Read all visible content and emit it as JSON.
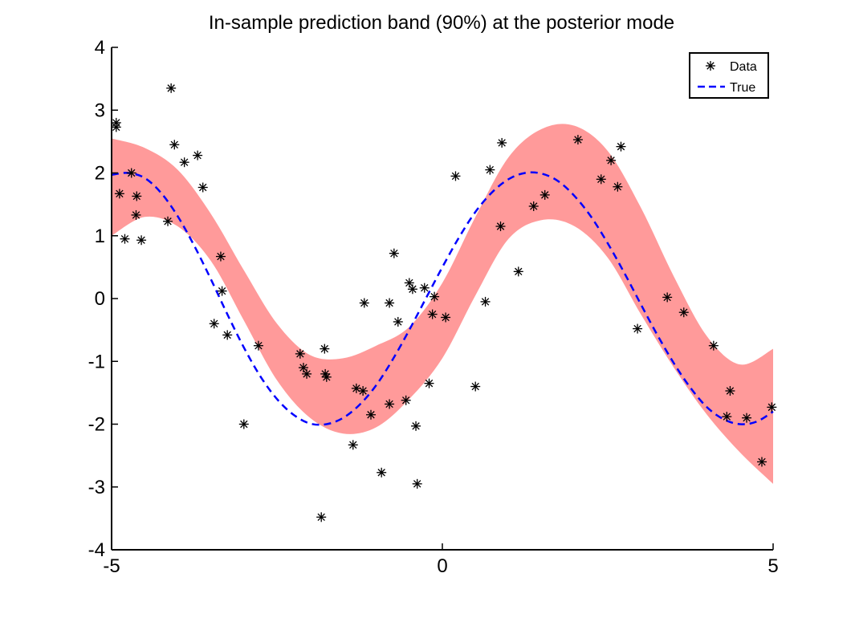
{
  "colors": {
    "band": "#ff9a9a",
    "true_line": "#0000ff",
    "data_marker": "#000000",
    "axis": "#000000"
  },
  "chart_data": {
    "type": "line",
    "title": "In-sample prediction band (90%) at the posterior mode",
    "xlabel": "",
    "ylabel": "",
    "xlim": [
      -5,
      5
    ],
    "ylim": [
      -4,
      4
    ],
    "x_ticks": [
      -5,
      0,
      5
    ],
    "x_tick_labels": [
      "-5",
      "0",
      "5"
    ],
    "y_ticks": [
      -4,
      -3,
      -2,
      -1,
      0,
      1,
      2,
      3,
      4
    ],
    "y_tick_labels": [
      "-4",
      "-3",
      "-2",
      "-1",
      "0",
      "1",
      "2",
      "3",
      "4"
    ],
    "grid": false,
    "legend": {
      "placement": "top-right",
      "entries": [
        {
          "label": "Data",
          "marker": "asterisk"
        },
        {
          "label": "True",
          "line": "dashed"
        }
      ]
    },
    "band": {
      "x": [
        -5,
        -4.5,
        -4,
        -3.5,
        -3,
        -2.5,
        -2,
        -1.5,
        -1,
        -0.5,
        0,
        0.5,
        1,
        1.5,
        2,
        2.5,
        3,
        3.5,
        4,
        4.5,
        5
      ],
      "upper": [
        2.55,
        2.4,
        2.05,
        1.35,
        0.45,
        -0.4,
        -0.9,
        -0.95,
        -0.75,
        -0.45,
        0.25,
        1.3,
        2.25,
        2.7,
        2.75,
        2.35,
        1.45,
        0.35,
        -0.6,
        -1.05,
        -0.8
      ],
      "lower": [
        1.0,
        1.3,
        1.15,
        0.6,
        -0.35,
        -1.3,
        -1.9,
        -2.15,
        -2.05,
        -1.6,
        -0.95,
        0.05,
        0.95,
        1.25,
        1.15,
        0.65,
        -0.25,
        -1.1,
        -1.85,
        -2.45,
        -2.95
      ]
    },
    "series": [
      {
        "name": "True",
        "style": "dashed",
        "x": [
          -5,
          -4.75,
          -4.5,
          -4.25,
          -4,
          -3.75,
          -3.5,
          -3.25,
          -3,
          -2.75,
          -2.5,
          -2.25,
          -2,
          -1.75,
          -1.5,
          -1.25,
          -1,
          -0.75,
          -0.5,
          -0.25,
          0,
          0.25,
          0.5,
          0.75,
          1,
          1.25,
          1.5,
          1.75,
          2,
          2.25,
          2.5,
          2.75,
          3,
          3.25,
          3.5,
          3.75,
          4,
          4.25,
          4.5,
          4.75,
          5
        ],
        "y": [
          1.97,
          2.0,
          1.92,
          1.68,
          1.31,
          0.84,
          0.31,
          -0.25,
          -0.78,
          -1.24,
          -1.6,
          -1.85,
          -1.99,
          -2.0,
          -1.9,
          -1.69,
          -1.38,
          -0.97,
          -0.5,
          0.0,
          0.5,
          0.97,
          1.38,
          1.69,
          1.9,
          2.0,
          1.99,
          1.87,
          1.63,
          1.3,
          0.88,
          0.41,
          -0.09,
          -0.58,
          -1.03,
          -1.42,
          -1.73,
          -1.92,
          -2.0,
          -1.96,
          -1.8
        ]
      },
      {
        "name": "Data",
        "style": "markers",
        "points": [
          [
            -4.93,
            2.8
          ],
          [
            -4.93,
            2.73
          ],
          [
            -4.88,
            1.67
          ],
          [
            -4.8,
            0.95
          ],
          [
            -4.7,
            2.0
          ],
          [
            -4.63,
            1.33
          ],
          [
            -4.62,
            1.63
          ],
          [
            -4.55,
            0.93
          ],
          [
            -4.15,
            1.23
          ],
          [
            -4.1,
            3.35
          ],
          [
            -4.05,
            2.45
          ],
          [
            -3.9,
            2.17
          ],
          [
            -3.7,
            2.28
          ],
          [
            -3.62,
            1.77
          ],
          [
            -3.45,
            -0.4
          ],
          [
            -3.35,
            0.67
          ],
          [
            -3.33,
            0.12
          ],
          [
            -3.25,
            -0.58
          ],
          [
            -3.0,
            -2.0
          ],
          [
            -2.78,
            -0.75
          ],
          [
            -2.15,
            -0.88
          ],
          [
            -2.1,
            -1.1
          ],
          [
            -2.05,
            -1.2
          ],
          [
            -1.83,
            -3.48
          ],
          [
            -1.78,
            -0.8
          ],
          [
            -1.77,
            -1.2
          ],
          [
            -1.75,
            -1.25
          ],
          [
            -1.35,
            -2.33
          ],
          [
            -1.3,
            -1.43
          ],
          [
            -1.2,
            -1.47
          ],
          [
            -1.18,
            -0.07
          ],
          [
            -1.08,
            -1.85
          ],
          [
            -0.92,
            -2.77
          ],
          [
            -0.8,
            -0.07
          ],
          [
            -0.8,
            -1.68
          ],
          [
            -0.73,
            0.72
          ],
          [
            -0.67,
            -0.37
          ],
          [
            -0.55,
            -1.62
          ],
          [
            -0.5,
            0.25
          ],
          [
            -0.45,
            0.15
          ],
          [
            -0.4,
            -2.03
          ],
          [
            -0.38,
            -2.95
          ],
          [
            -0.27,
            0.17
          ],
          [
            -0.2,
            -1.35
          ],
          [
            -0.15,
            -0.25
          ],
          [
            -0.12,
            0.03
          ],
          [
            0.05,
            -0.3
          ],
          [
            0.2,
            1.95
          ],
          [
            0.5,
            -1.4
          ],
          [
            0.65,
            -0.05
          ],
          [
            0.72,
            2.05
          ],
          [
            0.88,
            1.15
          ],
          [
            0.9,
            2.48
          ],
          [
            1.15,
            0.43
          ],
          [
            1.38,
            1.47
          ],
          [
            1.55,
            1.65
          ],
          [
            2.05,
            2.53
          ],
          [
            2.4,
            1.9
          ],
          [
            2.55,
            2.2
          ],
          [
            2.65,
            1.78
          ],
          [
            2.7,
            2.42
          ],
          [
            2.95,
            -0.48
          ],
          [
            3.4,
            0.02
          ],
          [
            3.65,
            -0.22
          ],
          [
            4.1,
            -0.75
          ],
          [
            4.3,
            -1.88
          ],
          [
            4.35,
            -1.47
          ],
          [
            4.6,
            -1.9
          ],
          [
            4.83,
            -2.6
          ],
          [
            4.98,
            -1.73
          ]
        ]
      }
    ]
  }
}
